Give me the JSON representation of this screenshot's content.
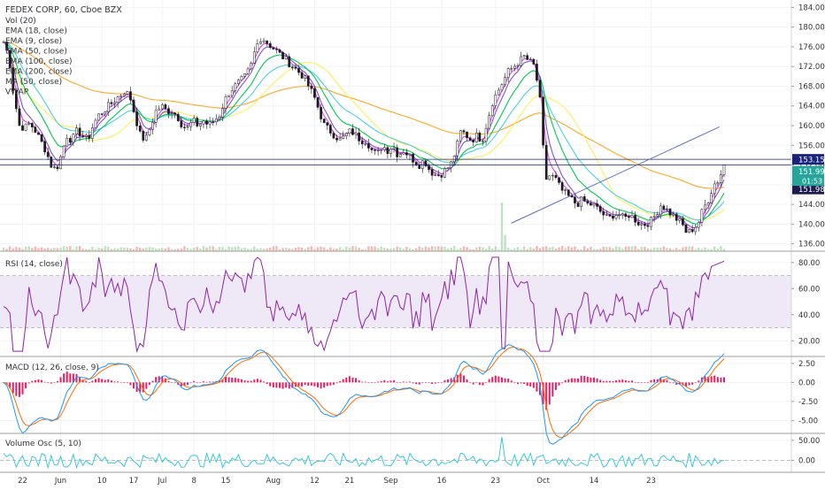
{
  "header": {
    "title": "FEDEX CORP, 60, Cboe BZX",
    "legend": [
      "Vol (20)",
      "EMA (18, close)",
      "EMA (9, close)",
      "EMA (50, close)",
      "EMA (100, close)",
      "EMA (200, close)",
      "MA (50, close)",
      "VWAP"
    ]
  },
  "colors": {
    "ema9": "#e040fb",
    "ema18": "#7e57c2",
    "ema50": "#00c853",
    "ema100": "#4dd0e1",
    "ema200": "#ffa726",
    "ma50": "#ffee58",
    "candle": "#1b1b1b",
    "rsi": "#8e24aa",
    "rsi_band": "#ede7f6",
    "macd": "#2196f3",
    "signal": "#ff6d00",
    "hist": "#e91e63",
    "osc": "#26c6da",
    "trend": "#5c6bc0"
  },
  "chart_data": [
    {
      "type": "line",
      "panel": "price",
      "title": "FEDEX CORP, 60, Cboe BZX",
      "ylim": [
        134.5,
        185.5
      ],
      "y_ticks": [
        "184.00",
        "180.00",
        "176.00",
        "172.00",
        "168.00",
        "164.00",
        "160.00",
        "156.00",
        "152.00",
        "148.00",
        "144.00",
        "140.00",
        "136.00"
      ],
      "x_ticks": [
        "22",
        "Jun",
        "10",
        "17",
        "Jul",
        "8",
        "15",
        "Aug",
        "12",
        "21",
        "Sep",
        "16",
        "23",
        "Oct",
        "14",
        "23"
      ],
      "x_tick_index": [
        6,
        18,
        31,
        41,
        50,
        60,
        70,
        85,
        98,
        109,
        122,
        138,
        155,
        170,
        186,
        204
      ],
      "close": [
        177,
        174,
        166,
        160,
        159.5,
        160.5,
        159,
        157,
        155,
        152,
        151,
        154,
        158,
        157,
        159,
        158,
        157,
        160,
        162,
        163,
        164,
        165,
        166,
        167,
        166,
        162,
        158,
        157,
        160,
        163,
        164,
        163,
        163,
        162,
        160,
        159.5,
        161,
        160,
        161,
        160,
        161,
        162,
        165,
        167,
        168,
        169,
        170,
        172,
        176,
        178,
        177,
        176,
        175,
        174,
        173,
        172,
        171,
        170,
        168,
        166,
        163,
        160,
        159,
        158,
        157,
        158,
        159,
        158,
        157,
        157,
        155,
        154,
        156,
        155,
        156,
        154,
        155,
        154,
        153,
        152,
        153,
        151,
        150,
        150,
        151,
        152,
        155,
        159,
        158,
        157,
        158,
        157,
        161,
        165,
        167,
        169,
        171,
        172,
        173,
        174,
        173,
        172,
        165,
        149,
        150,
        149,
        147,
        146,
        145,
        144,
        145,
        144,
        144,
        143,
        142,
        141,
        142,
        142,
        141,
        142,
        141,
        140,
        140,
        140.5,
        142,
        144,
        143,
        142,
        141,
        140,
        138,
        139,
        140,
        143,
        145,
        148,
        149,
        151.99
      ],
      "series": [
        {
          "name": "EMA (9, close)"
        },
        {
          "name": "EMA (18, close)"
        },
        {
          "name": "EMA (50, close)"
        },
        {
          "name": "EMA (100, close)"
        },
        {
          "name": "EMA (200, close)"
        },
        {
          "name": "MA (50, close)"
        }
      ],
      "horizontal_lines": [
        153.15,
        151.98
      ],
      "price_labels": [
        {
          "value": 153.15,
          "text": "153.15"
        },
        {
          "value": 151.99,
          "text": "151.99"
        },
        {
          "value": 151.98,
          "text": "151.98"
        }
      ],
      "countdown": "01:53",
      "trendline": {
        "from": [
          160,
          140.2
        ],
        "to": [
          213,
          159.2
        ]
      }
    },
    {
      "type": "line",
      "panel": "rsi",
      "title": "RSI (14, close)",
      "ylim": [
        8,
        88
      ],
      "y_ticks": [
        "80.00",
        "60.00",
        "40.00",
        "20.00"
      ],
      "band": [
        30,
        70
      ],
      "series": [
        {
          "name": "RSI (14, close)"
        }
      ]
    },
    {
      "type": "bar",
      "panel": "macd",
      "title": "MACD (12, 26, close, 9)",
      "ylim": [
        -6.7,
        3.3
      ],
      "y_ticks": [
        "2.50",
        "0.00",
        "-2.50",
        "-5.00"
      ],
      "series": [
        {
          "name": "MACD"
        },
        {
          "name": "Signal"
        },
        {
          "name": "Histogram"
        }
      ]
    },
    {
      "type": "line",
      "panel": "volume_osc",
      "title": "Volume Osc (5, 10)",
      "ylim": [
        -30,
        65
      ],
      "y_ticks": [
        "50.00",
        "0.00"
      ],
      "series": [
        {
          "name": "Volume Osc (5, 10)"
        }
      ]
    }
  ]
}
